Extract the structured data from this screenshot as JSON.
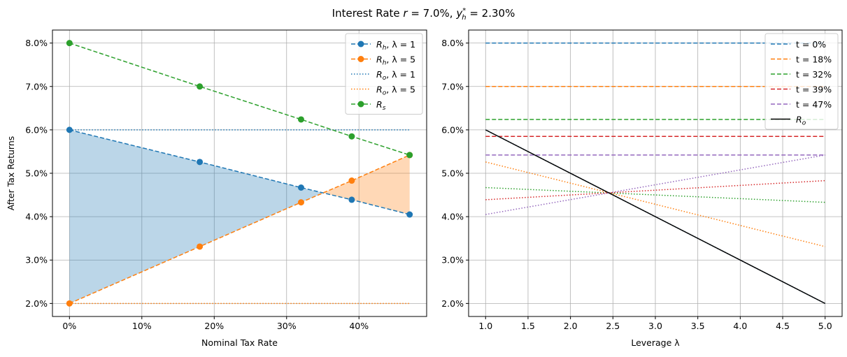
{
  "title": "Interest Rate r = 7.0%, y*_h = 2.30%",
  "title_parts": {
    "prefix": "Interest Rate ",
    "r": "r",
    "r_value": " = 7.0%, ",
    "y": "y",
    "y_sub": "h",
    "y_sup": "*",
    "y_value": " = 2.30%"
  },
  "chart_data": [
    {
      "type": "line",
      "xlabel": "Nominal Tax Rate",
      "ylabel": "After Tax Returns",
      "xlim": [
        -2.35,
        49.35
      ],
      "ylim": [
        1.7,
        8.3
      ],
      "xticks": [
        0,
        10,
        20,
        30,
        40
      ],
      "xtick_labels": [
        "0%",
        "10%",
        "20%",
        "30%",
        "40%"
      ],
      "yticks": [
        2,
        3,
        4,
        5,
        6,
        7,
        8
      ],
      "ytick_labels": [
        "2.0%",
        "3.0%",
        "4.0%",
        "5.0%",
        "6.0%",
        "7.0%",
        "8.0%"
      ],
      "grid": true,
      "legend_position": "top-right",
      "x": [
        0,
        18,
        32,
        39,
        47
      ],
      "series": [
        {
          "name": "R_h, λ = 1",
          "main": "R",
          "sub": "h",
          "rest": ", λ = 1",
          "color": "#1f77b4",
          "style": "dashed",
          "marker": true,
          "values": [
            6.0,
            5.26,
            4.67,
            4.39,
            4.05
          ]
        },
        {
          "name": "R_h, λ = 5",
          "main": "R",
          "sub": "h",
          "rest": ", λ = 5",
          "color": "#ff7f0e",
          "style": "dashed",
          "marker": true,
          "values": [
            2.0,
            3.31,
            4.33,
            4.83,
            5.42
          ]
        },
        {
          "name": "R_o, λ = 1",
          "main": "R",
          "sub": "o",
          "rest": ", λ = 1",
          "color": "#1f77b4",
          "style": "dotted",
          "marker": false,
          "values": [
            6.0,
            6.0,
            6.0,
            6.0,
            6.0
          ]
        },
        {
          "name": "R_o, λ = 5",
          "main": "R",
          "sub": "o",
          "rest": ", λ = 5",
          "color": "#ff7f0e",
          "style": "dotted",
          "marker": false,
          "values": [
            2.0,
            2.0,
            2.0,
            2.0,
            2.0
          ]
        },
        {
          "name": "R_s",
          "main": "R",
          "sub": "s",
          "rest": "",
          "color": "#2ca02c",
          "style": "dashed",
          "marker": true,
          "values": [
            8.0,
            7.0,
            6.24,
            5.85,
            5.42
          ]
        }
      ],
      "fill_between": {
        "series": [
          0,
          1
        ],
        "colors": [
          "#1f77b4",
          "#ff7f0e"
        ],
        "alpha": 0.3
      }
    },
    {
      "type": "line",
      "xlabel": "Leverage λ",
      "xlim": [
        0.8,
        5.2
      ],
      "ylim": [
        1.7,
        8.3
      ],
      "xticks": [
        1.0,
        1.5,
        2.0,
        2.5,
        3.0,
        3.5,
        4.0,
        4.5,
        5.0
      ],
      "xtick_labels": [
        "1.0",
        "1.5",
        "2.0",
        "2.5",
        "3.0",
        "3.5",
        "4.0",
        "4.5",
        "5.0"
      ],
      "yticks": [
        2,
        3,
        4,
        5,
        6,
        7,
        8
      ],
      "ytick_labels": [
        "2.0%",
        "3.0%",
        "4.0%",
        "5.0%",
        "6.0%",
        "7.0%",
        "8.0%"
      ],
      "grid": true,
      "legend_position": "top-right",
      "x": [
        1,
        5
      ],
      "series": [
        {
          "name": "t = 0%",
          "color": "#1f77b4",
          "style": "dashed",
          "values": [
            8.0,
            8.0
          ]
        },
        {
          "name": "t = 18%",
          "color": "#ff7f0e",
          "style": "dashed",
          "values": [
            7.0,
            7.0
          ]
        },
        {
          "name": "t = 32%",
          "color": "#2ca02c",
          "style": "dashed",
          "values": [
            6.24,
            6.24
          ]
        },
        {
          "name": "t = 39%",
          "color": "#d62728",
          "style": "dashed",
          "values": [
            5.85,
            5.85
          ]
        },
        {
          "name": "t = 47%",
          "color": "#9467bd",
          "style": "dashed",
          "values": [
            5.42,
            5.42
          ]
        },
        {
          "color": "#1f77b4",
          "style": "dotted",
          "values": [
            6.0,
            2.0
          ]
        },
        {
          "color": "#ff7f0e",
          "style": "dotted",
          "values": [
            5.26,
            3.31
          ]
        },
        {
          "color": "#2ca02c",
          "style": "dotted",
          "values": [
            4.67,
            4.33
          ]
        },
        {
          "color": "#d62728",
          "style": "dotted",
          "values": [
            4.39,
            4.83
          ]
        },
        {
          "color": "#9467bd",
          "style": "dotted",
          "values": [
            4.05,
            5.42
          ]
        },
        {
          "name": "R_o",
          "main": "R",
          "sub": "o",
          "rest": "",
          "color": "#000000",
          "style": "solid",
          "values": [
            6.0,
            2.0
          ]
        }
      ]
    }
  ]
}
